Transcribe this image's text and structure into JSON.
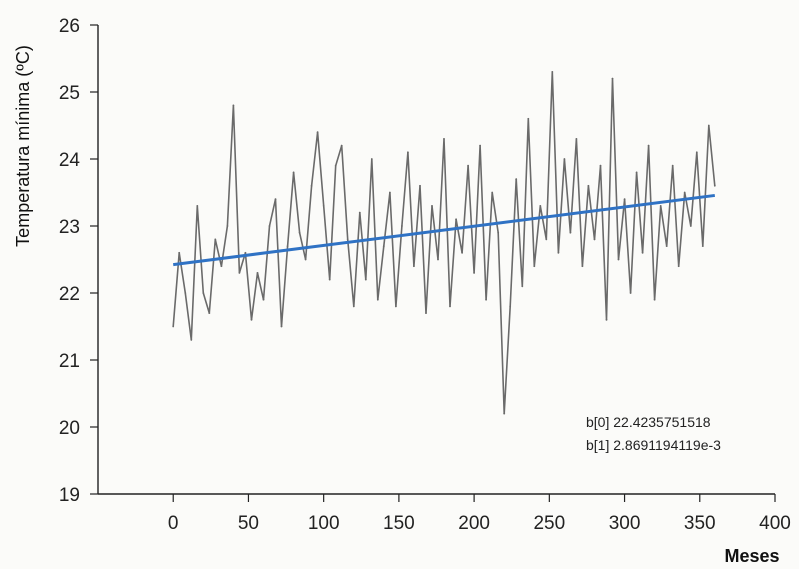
{
  "chart_data": {
    "type": "line",
    "title": "",
    "xlabel": "Meses",
    "ylabel": "Temperatura mínima (ºC)",
    "xlim": [
      -50,
      400
    ],
    "ylim": [
      19,
      26
    ],
    "x_ticks": [
      "0",
      "50",
      "100",
      "150",
      "200",
      "250",
      "300",
      "350",
      "400"
    ],
    "y_ticks": [
      "19",
      "20",
      "21",
      "22",
      "23",
      "24",
      "25",
      "26"
    ],
    "grid": false,
    "legend": "none",
    "colors": {
      "series": "#6a6a6a",
      "fit": "#2f72c4",
      "axis": "#222222"
    },
    "series": [
      {
        "x": [
          0,
          4,
          8,
          12,
          16,
          20,
          24,
          28,
          32,
          36,
          40,
          44,
          48,
          52,
          56,
          60,
          64,
          68,
          72,
          76,
          80,
          84,
          88,
          92,
          96,
          100,
          104,
          108,
          112,
          116,
          120,
          124,
          128,
          132,
          136,
          140,
          144,
          148,
          152,
          156,
          160,
          164,
          168,
          172,
          176,
          180,
          184,
          188,
          192,
          196,
          200,
          204,
          208,
          212,
          216,
          220,
          224,
          228,
          232,
          236,
          240,
          244,
          248,
          252,
          256,
          260,
          264,
          268,
          272,
          276,
          280,
          284,
          288,
          292,
          296,
          300,
          304,
          308,
          312,
          316,
          320,
          324,
          328,
          332,
          336,
          340,
          344,
          348,
          352,
          356,
          360
        ],
        "y": [
          21.5,
          22.6,
          22.0,
          21.3,
          23.3,
          22.0,
          21.7,
          22.8,
          22.4,
          23.0,
          24.8,
          22.3,
          22.6,
          21.6,
          22.3,
          21.9,
          23.0,
          23.4,
          21.5,
          22.7,
          23.8,
          22.9,
          22.5,
          23.6,
          24.4,
          23.3,
          22.2,
          23.9,
          24.2,
          22.8,
          21.8,
          23.2,
          22.2,
          24.0,
          21.9,
          22.7,
          23.5,
          21.8,
          23.0,
          24.1,
          22.4,
          23.6,
          21.7,
          23.3,
          22.5,
          24.3,
          21.8,
          23.1,
          22.6,
          23.9,
          22.3,
          24.2,
          21.9,
          23.5,
          22.9,
          20.2,
          21.8,
          23.7,
          22.1,
          24.6,
          22.4,
          23.3,
          22.8,
          25.3,
          22.6,
          24.0,
          22.9,
          24.3,
          22.4,
          23.6,
          22.8,
          23.9,
          21.6,
          25.2,
          22.5,
          23.4,
          22.0,
          23.8,
          22.6,
          24.2,
          21.9,
          23.3,
          22.7,
          23.9,
          22.4,
          23.5,
          23.0,
          24.1,
          22.7,
          24.5,
          23.6
        ]
      },
      {
        "x": [
          0,
          360
        ],
        "y": [
          22.4235751518,
          23.456
        ]
      }
    ],
    "annotations": [
      "b[0] 22.4235751518",
      "b[1] 2.8691194119e-3"
    ]
  }
}
